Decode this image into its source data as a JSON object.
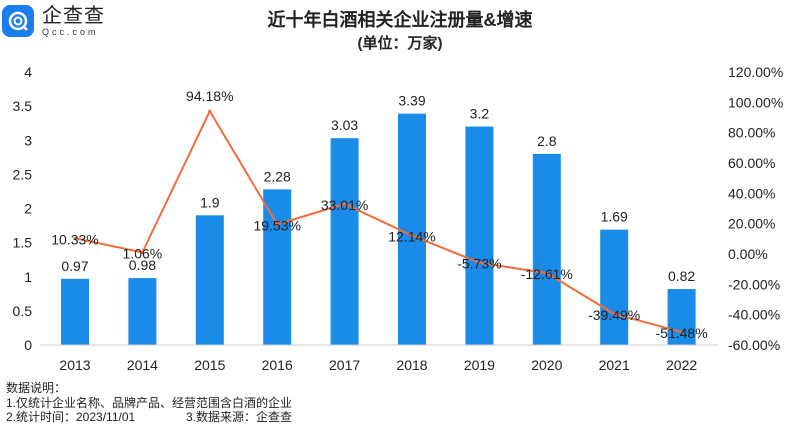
{
  "logo": {
    "cn": "企查查",
    "en": "Qcc.com",
    "brand_color": "#1a7ef0"
  },
  "chart_data": {
    "type": "bar+line",
    "title": "近十年白酒相关企业注册量&增速",
    "subtitle": "(单位：万家)",
    "categories": [
      "2013",
      "2014",
      "2015",
      "2016",
      "2017",
      "2018",
      "2019",
      "2020",
      "2021",
      "2022"
    ],
    "series": [
      {
        "type": "bar",
        "axis": "left",
        "color": "#1a8be8",
        "values": [
          0.97,
          0.98,
          1.9,
          2.28,
          3.03,
          3.39,
          3.2,
          2.8,
          1.69,
          0.82
        ],
        "labels": [
          "0.97",
          "0.98",
          "1.9",
          "2.28",
          "3.03",
          "3.39",
          "3.2",
          "2.8",
          "1.69",
          "0.82"
        ]
      },
      {
        "type": "line",
        "axis": "right",
        "color": "#f26b3a",
        "values": [
          10.33,
          1.06,
          94.18,
          19.53,
          33.01,
          12.14,
          -5.73,
          -12.61,
          -39.49,
          -51.48
        ],
        "labels": [
          "10.33%",
          "1.06%",
          "94.18%",
          "19.53%",
          "33.01%",
          "12.14%",
          "-5.73%",
          "-12.61%",
          "-39.49%",
          "-51.48%"
        ]
      }
    ],
    "left_axis": {
      "range": [
        0,
        4
      ],
      "ticks": [
        "0",
        "0.5",
        "1",
        "1.5",
        "2",
        "2.5",
        "3",
        "3.5",
        "4"
      ]
    },
    "right_axis": {
      "range": [
        -60,
        120
      ],
      "ticks": [
        "-60.00%",
        "-40.00%",
        "-20.00%",
        "0.00%",
        "20.00%",
        "40.00%",
        "60.00%",
        "80.00%",
        "100.00%",
        "120.00%"
      ]
    },
    "grid": false
  },
  "notes": {
    "heading": "数据说明：",
    "line1": "1.仅统计企业名称、品牌产品、经营范围含白酒的企业",
    "line2a": "2.统计时间：2023/11/01",
    "line2b": "3.数据来源：企查查"
  }
}
